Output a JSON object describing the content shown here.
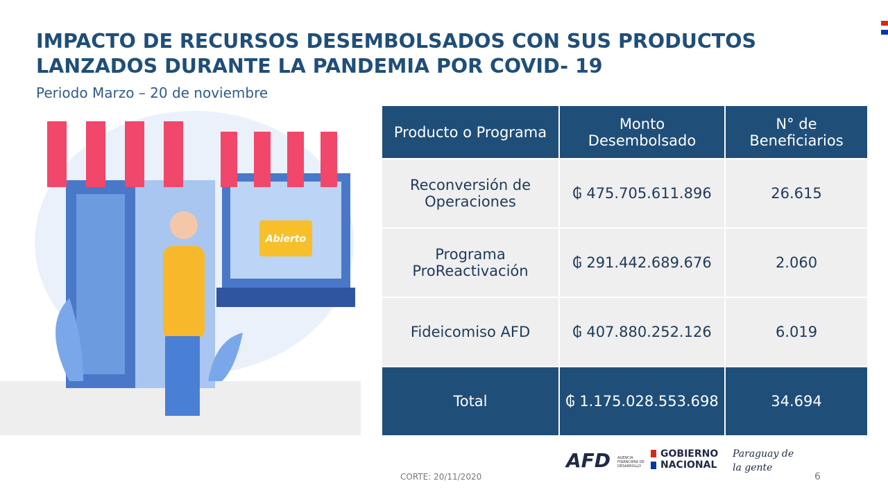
{
  "header": {
    "title_lines": [
      "IMPACTO DE RECURSOS DESEMBOLSADOS CON SUS PRODUCTOS",
      "LANZADOS DURANTE LA PANDEMIA POR COVID- 19"
    ],
    "subtitle": "Periodo Marzo – 20  de noviembre"
  },
  "illustration": {
    "sign": "Abierto"
  },
  "table": {
    "columns": [
      "Producto o Programa",
      "Monto Desembolsado",
      "N° de Beneficiarios"
    ],
    "rows": [
      [
        "Reconversión de Operaciones",
        "₲ 475.705.611.896",
        "26.615"
      ],
      [
        "Programa ProReactivación",
        "₲ 291.442.689.676",
        "2.060"
      ],
      [
        "Fideicomiso AFD",
        "₲ 407.880.252.126",
        "6.019"
      ]
    ],
    "total": [
      "Total",
      "₲ 1.175.028.553.698",
      "34.694"
    ]
  },
  "footer": {
    "cutoff": "CORTE: 20/11/2020",
    "page": "6",
    "logo_afd": "AFD",
    "logo_afd_sub": "AGENCIA FINANCIERA DE DESARROLLO",
    "logo_gov": "GOBIERNO NACIONAL",
    "logo_paraguay": "Paraguay de la gente"
  }
}
